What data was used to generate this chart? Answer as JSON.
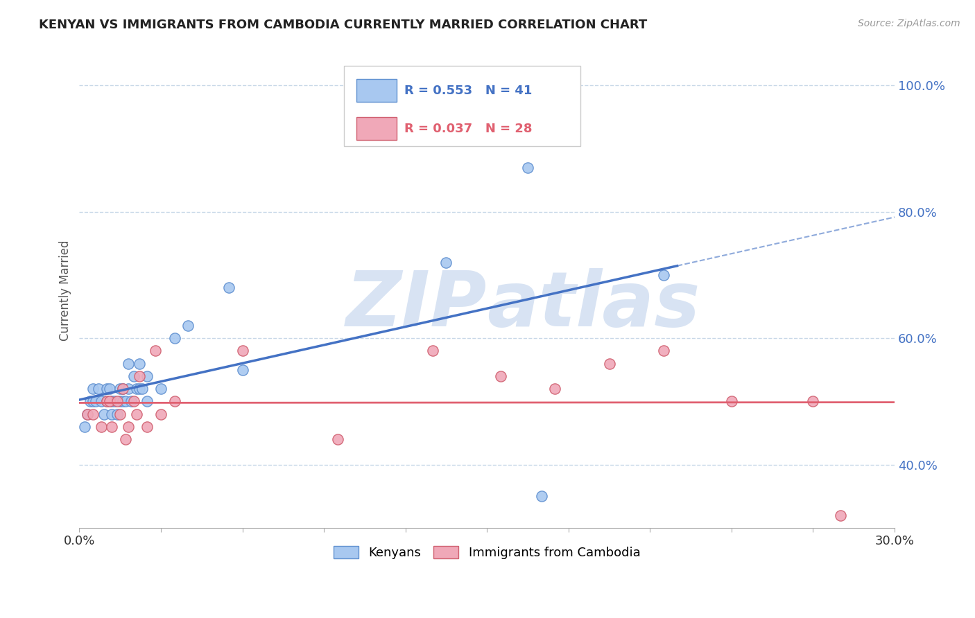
{
  "title": "KENYAN VS IMMIGRANTS FROM CAMBODIA CURRENTLY MARRIED CORRELATION CHART",
  "source_text": "Source: ZipAtlas.com",
  "ylabel": "Currently Married",
  "xlim": [
    0.0,
    0.3
  ],
  "ylim": [
    0.3,
    1.05
  ],
  "yticks": [
    0.4,
    0.6,
    0.8,
    1.0
  ],
  "ytick_labels": [
    "40.0%",
    "60.0%",
    "80.0%",
    "100.0%"
  ],
  "xticks": [
    0.0,
    0.03,
    0.06,
    0.09,
    0.12,
    0.15,
    0.18,
    0.21,
    0.24,
    0.27,
    0.3
  ],
  "xtick_labels": [
    "0.0%",
    "",
    "",
    "",
    "",
    "",
    "",
    "",
    "",
    "",
    "30.0%"
  ],
  "legend_r1": "R = 0.553",
  "legend_n1": "N = 41",
  "legend_r2": "R = 0.037",
  "legend_n2": "N = 28",
  "color_blue": "#a8c8f0",
  "color_pink": "#f0a8b8",
  "color_blue_edge": "#6090d0",
  "color_pink_edge": "#d06070",
  "color_blue_line": "#4472c4",
  "color_pink_line": "#e06070",
  "color_title": "#222222",
  "color_axis_label": "#4472c4",
  "watermark_color": "#c8d8ee",
  "background_color": "#ffffff",
  "grid_color": "#c8d8e8",
  "kenyan_x": [
    0.002,
    0.003,
    0.004,
    0.005,
    0.005,
    0.006,
    0.007,
    0.008,
    0.009,
    0.01,
    0.01,
    0.011,
    0.011,
    0.012,
    0.012,
    0.013,
    0.014,
    0.015,
    0.015,
    0.016,
    0.016,
    0.017,
    0.018,
    0.018,
    0.019,
    0.02,
    0.021,
    0.022,
    0.022,
    0.023,
    0.025,
    0.025,
    0.03,
    0.035,
    0.04,
    0.055,
    0.06,
    0.135,
    0.17,
    0.215,
    0.165
  ],
  "kenyan_y": [
    0.46,
    0.48,
    0.5,
    0.5,
    0.52,
    0.5,
    0.52,
    0.5,
    0.48,
    0.52,
    0.5,
    0.52,
    0.5,
    0.5,
    0.48,
    0.5,
    0.48,
    0.5,
    0.52,
    0.52,
    0.5,
    0.5,
    0.56,
    0.52,
    0.5,
    0.54,
    0.52,
    0.56,
    0.52,
    0.52,
    0.54,
    0.5,
    0.52,
    0.6,
    0.62,
    0.68,
    0.55,
    0.72,
    0.35,
    0.7,
    0.87
  ],
  "cambodia_x": [
    0.003,
    0.005,
    0.008,
    0.01,
    0.011,
    0.012,
    0.014,
    0.015,
    0.016,
    0.017,
    0.018,
    0.02,
    0.021,
    0.022,
    0.025,
    0.028,
    0.03,
    0.035,
    0.06,
    0.095,
    0.13,
    0.155,
    0.175,
    0.195,
    0.215,
    0.24,
    0.27,
    0.28
  ],
  "cambodia_y": [
    0.48,
    0.48,
    0.46,
    0.5,
    0.5,
    0.46,
    0.5,
    0.48,
    0.52,
    0.44,
    0.46,
    0.5,
    0.48,
    0.54,
    0.46,
    0.58,
    0.48,
    0.5,
    0.58,
    0.44,
    0.58,
    0.54,
    0.52,
    0.56,
    0.58,
    0.5,
    0.5,
    0.32
  ]
}
